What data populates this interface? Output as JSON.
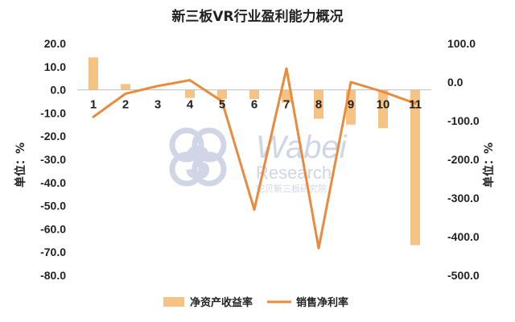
{
  "chart_data": {
    "type": "bar+line",
    "title": "新三板VR行业盈利能力概况",
    "categories": [
      "1",
      "2",
      "3",
      "4",
      "5",
      "6",
      "7",
      "8",
      "9",
      "10",
      "11"
    ],
    "series": [
      {
        "name": "净资产收益率",
        "type": "bar",
        "axis": "left",
        "values": [
          14.0,
          2.5,
          0.3,
          -3.5,
          -4.0,
          -4.0,
          -5.5,
          -12.5,
          -15.0,
          -16.5,
          -67.0
        ]
      },
      {
        "name": "销售净利率",
        "type": "line",
        "axis": "right",
        "values": [
          -90,
          -30,
          -10,
          5,
          -50,
          -330,
          35,
          -430,
          0,
          -25,
          -55
        ]
      }
    ],
    "y_left": {
      "label": "单位：%",
      "ylim": [
        -80,
        20
      ],
      "ticks": [
        "20.0",
        "10.0",
        "0.0",
        "-10.0",
        "-20.0",
        "-30.0",
        "-40.0",
        "-50.0",
        "-60.0",
        "-70.0",
        "-80.0"
      ]
    },
    "y_right": {
      "label": "单位：%",
      "ylim": [
        -500,
        100
      ],
      "ticks": [
        "100.0",
        "0.0",
        "-100.0",
        "-200.0",
        "-300.0",
        "-400.0",
        "-500.0"
      ]
    },
    "legend_position": "bottom",
    "grid": false,
    "colors": {
      "bar": "#f5c383",
      "line": "#ea8a3c"
    }
  },
  "watermark": {
    "logo_glyph": "3",
    "line1": "Wabei",
    "line2": "Research",
    "line3": "挖贝新三板研究院"
  }
}
